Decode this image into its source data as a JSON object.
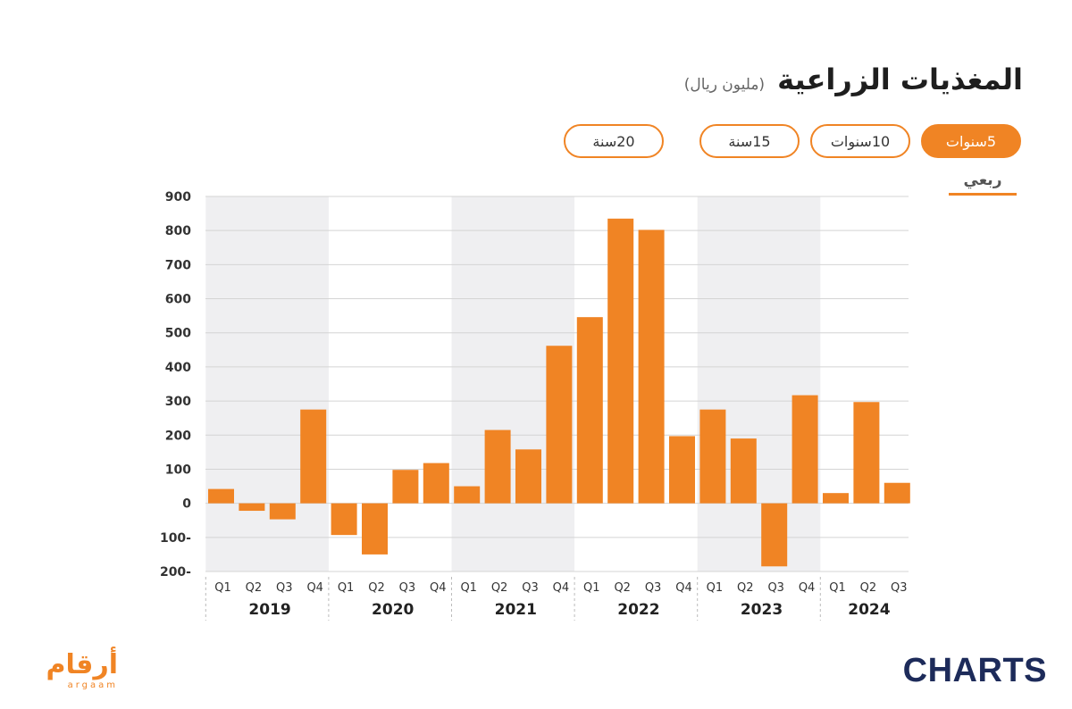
{
  "title": "المغذيات الزراعية",
  "subtitle": "(مليون ريال)",
  "range_tabs": [
    {
      "label": "5سنوات",
      "active": true
    },
    {
      "label": "10سنوات",
      "active": false
    },
    {
      "label": "15سنة",
      "active": false
    },
    {
      "label": "20سنة",
      "active": false
    }
  ],
  "period_label": "ربعي",
  "accent_color": "#f08424",
  "chart_data": {
    "type": "bar",
    "title": "المغذيات الزراعية",
    "ylabel": "",
    "ylim": [
      -200,
      900
    ],
    "yticks": [
      900,
      800,
      700,
      600,
      500,
      400,
      300,
      200,
      100,
      0,
      -100,
      -200
    ],
    "ytick_labels": [
      "900",
      "800",
      "700",
      "600",
      "500",
      "400",
      "300",
      "200",
      "100",
      "0",
      "100-",
      "200-"
    ],
    "grid": true,
    "bar_color": "#f08424",
    "years": [
      {
        "label": "2019",
        "quarters": [
          "Q1",
          "Q2",
          "Q3",
          "Q4"
        ],
        "values": [
          42,
          -22,
          -47,
          275
        ],
        "shaded": true
      },
      {
        "label": "2020",
        "quarters": [
          "Q1",
          "Q2",
          "Q3",
          "Q4"
        ],
        "values": [
          -93,
          -150,
          98,
          118
        ],
        "shaded": false
      },
      {
        "label": "2021",
        "quarters": [
          "Q1",
          "Q2",
          "Q3",
          "Q4"
        ],
        "values": [
          50,
          215,
          158,
          462
        ],
        "shaded": true
      },
      {
        "label": "2022",
        "quarters": [
          "Q1",
          "Q2",
          "Q3",
          "Q4"
        ],
        "values": [
          546,
          835,
          802,
          197
        ],
        "shaded": false
      },
      {
        "label": "2023",
        "quarters": [
          "Q1",
          "Q2",
          "Q3",
          "Q4"
        ],
        "values": [
          275,
          190,
          -185,
          317
        ],
        "shaded": true
      },
      {
        "label": "2024",
        "quarters": [
          "Q1",
          "Q2",
          "Q3"
        ],
        "values": [
          30,
          297,
          60
        ],
        "shaded": false
      }
    ]
  },
  "logos": {
    "left_ar": "أرقام",
    "left_en": "argaam",
    "right": "CHARTS"
  }
}
